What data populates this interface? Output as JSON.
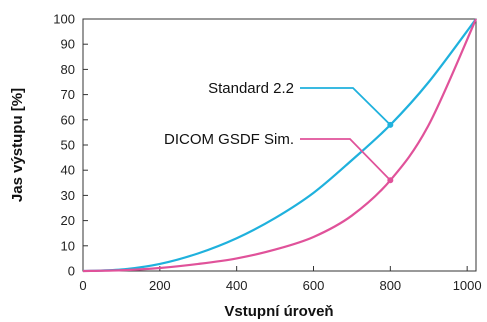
{
  "chart_data": {
    "type": "line",
    "title": "",
    "xlabel": "Vstupní úroveň",
    "ylabel": "Jas výstupu [%]",
    "xlim": [
      0,
      1023
    ],
    "ylim": [
      0,
      100
    ],
    "xticks": [
      "0",
      "200",
      "400",
      "600",
      "800",
      "1000"
    ],
    "yticks": [
      "0",
      "10",
      "20",
      "30",
      "40",
      "50",
      "60",
      "70",
      "80",
      "90",
      "100"
    ],
    "grid": false,
    "series": [
      {
        "name": "Standard 2.2",
        "color": "#1fb1dd",
        "x": [
          0,
          100,
          200,
          300,
          400,
          500,
          600,
          700,
          800,
          900,
          1023
        ],
        "y": [
          0,
          0.6,
          2.8,
          7,
          13,
          21,
          31,
          44,
          58,
          75,
          100
        ],
        "marker": {
          "x": 800,
          "y": 58
        }
      },
      {
        "name": "DICOM GSDF Sim.",
        "color": "#e0529a",
        "x": [
          0,
          100,
          200,
          300,
          400,
          500,
          600,
          700,
          800,
          900,
          1023
        ],
        "y": [
          0,
          0.3,
          1.2,
          2.8,
          5,
          8.5,
          13.5,
          22,
          36,
          58,
          100
        ],
        "marker": {
          "x": 800,
          "y": 36
        }
      }
    ]
  }
}
